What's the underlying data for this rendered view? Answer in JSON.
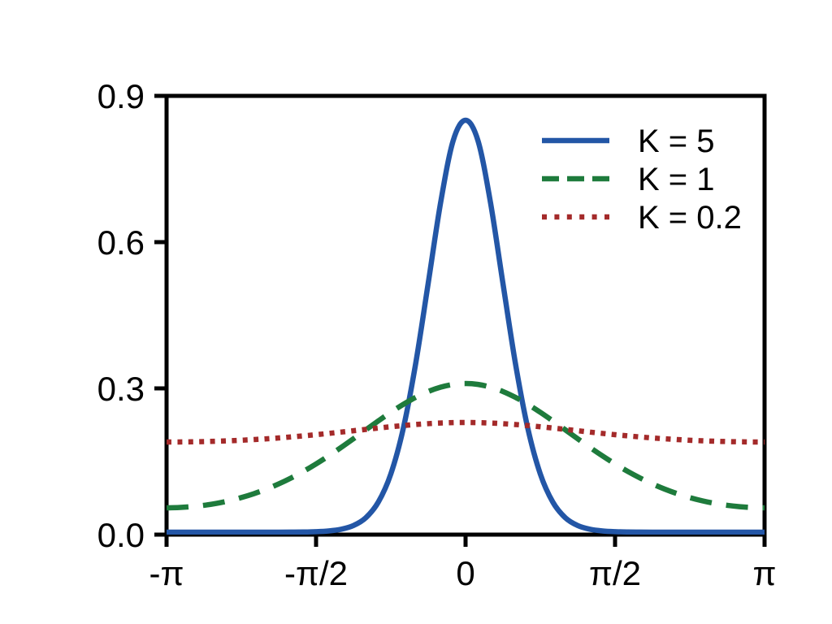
{
  "figure": {
    "background": "#ffffff",
    "frame_color": "#000000",
    "text_color": "#000000"
  },
  "chart_data": {
    "type": "line",
    "title": "",
    "xlabel": "",
    "ylabel": "",
    "grid": false,
    "legend_position": "upper right",
    "xlim_over_pi": [
      -1,
      1
    ],
    "ylim": [
      0,
      0.9
    ],
    "x_tick_positions_over_pi": [
      -1,
      -0.5,
      0,
      0.5,
      1
    ],
    "x_tick_labels": [
      "-π",
      "-π/2",
      "0",
      "π/2",
      "π"
    ],
    "y_tick_positions": [
      0,
      0.3,
      0.6,
      0.9
    ],
    "y_tick_labels": [
      "0.0",
      "0.3",
      "0.6",
      "0.9"
    ],
    "x_over_pi": [
      -1,
      -0.9583,
      -0.9167,
      -0.875,
      -0.8333,
      -0.7917,
      -0.75,
      -0.7083,
      -0.6667,
      -0.625,
      -0.5833,
      -0.5417,
      -0.5,
      -0.4583,
      -0.4167,
      -0.375,
      -0.3333,
      -0.2917,
      -0.25,
      -0.2083,
      -0.1667,
      -0.125,
      -0.0833,
      -0.0417,
      0,
      0.0417,
      0.0833,
      0.125,
      0.1667,
      0.2083,
      0.25,
      0.2917,
      0.3333,
      0.375,
      0.4167,
      0.4583,
      0.5,
      0.5417,
      0.5833,
      0.625,
      0.6667,
      0.7083,
      0.75,
      0.7917,
      0.8333,
      0.875,
      0.9167,
      0.9583,
      1
    ],
    "series": [
      {
        "name": "K = 5",
        "kappa": 5,
        "color": "#2356A6",
        "style": "solid",
        "dash": null,
        "peak": 0.85,
        "values": [
          0.005,
          0.005,
          0.005,
          0.005,
          0.005,
          0.005,
          0.005,
          0.005,
          0.005,
          0.0051,
          0.0052,
          0.0054,
          0.006,
          0.0075,
          0.0109,
          0.0186,
          0.0348,
          0.0668,
          0.1244,
          0.2178,
          0.3514,
          0.5154,
          0.6815,
          0.8077,
          0.85,
          0.8077,
          0.6815,
          0.5154,
          0.3514,
          0.2178,
          0.1244,
          0.0668,
          0.0348,
          0.0186,
          0.0109,
          0.0075,
          0.006,
          0.0054,
          0.0052,
          0.0051,
          0.005,
          0.005,
          0.005,
          0.005,
          0.005,
          0.005,
          0.005,
          0.005,
          0.005
        ]
      },
      {
        "name": "K = 1",
        "kappa": 1,
        "color": "#1E7B3C",
        "style": "dashed",
        "dash": [
          27,
          18
        ],
        "peak": 0.31,
        "values": [
          0.055,
          0.0556,
          0.0573,
          0.0601,
          0.0641,
          0.0694,
          0.076,
          0.0839,
          0.0932,
          0.104,
          0.1163,
          0.1299,
          0.145,
          0.1613,
          0.1786,
          0.1967,
          0.2151,
          0.2333,
          0.2509,
          0.2672,
          0.2816,
          0.2936,
          0.3025,
          0.3081,
          0.3099,
          0.3081,
          0.3025,
          0.2936,
          0.2816,
          0.2672,
          0.2509,
          0.2333,
          0.2151,
          0.1967,
          0.1786,
          0.1613,
          0.145,
          0.1299,
          0.1163,
          0.104,
          0.0932,
          0.0839,
          0.076,
          0.0694,
          0.0641,
          0.0601,
          0.0573,
          0.0556,
          0.055
        ]
      },
      {
        "name": "K = 0.2",
        "kappa": 0.2,
        "color": "#A42A2A",
        "style": "dotted",
        "dash": [
          6,
          7.4
        ],
        "peak": 0.23,
        "values": [
          0.19,
          0.1901,
          0.1904,
          0.1909,
          0.1916,
          0.1925,
          0.1936,
          0.195,
          0.1965,
          0.1983,
          0.2004,
          0.2026,
          0.205,
          0.2076,
          0.2103,
          0.2131,
          0.2159,
          0.2187,
          0.2213,
          0.2237,
          0.2259,
          0.2276,
          0.2289,
          0.2297,
          0.23,
          0.2297,
          0.2289,
          0.2276,
          0.2259,
          0.2237,
          0.2213,
          0.2187,
          0.2159,
          0.2131,
          0.2103,
          0.2076,
          0.205,
          0.2026,
          0.2004,
          0.1983,
          0.1965,
          0.195,
          0.1936,
          0.1925,
          0.1916,
          0.1909,
          0.1904,
          0.1901,
          0.19
        ]
      }
    ]
  }
}
